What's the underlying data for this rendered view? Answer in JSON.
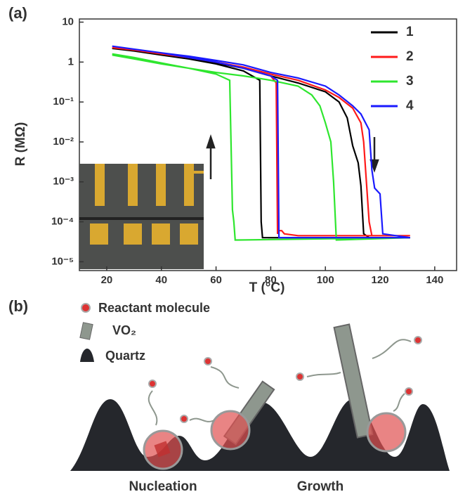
{
  "panel_labels": [
    "(a)",
    "(b)"
  ],
  "chart_data": {
    "type": "line",
    "log_y": true,
    "grid": false,
    "legend": "upper right",
    "x_label": "T (°C)",
    "y_label": "R (MΩ)",
    "xlim": [
      10,
      148
    ],
    "xticks": [
      20,
      40,
      60,
      80,
      100,
      120,
      140
    ],
    "ylim": [
      6e-06,
      12
    ],
    "yticks": [
      10,
      1,
      {
        "value": 0.1,
        "label": "10⁻¹"
      },
      {
        "value": 0.01,
        "label": "10⁻²"
      },
      {
        "value": 0.001,
        "label": "10⁻³"
      },
      {
        "value": 0.0001,
        "label": "10⁻⁴"
      },
      {
        "value": 1e-05,
        "label": "10⁻⁵"
      }
    ],
    "series": [
      {
        "name": "1",
        "color": "#000000",
        "x": [
          22,
          30,
          40,
          50,
          60,
          70,
          80,
          90,
          100,
          105,
          108,
          110,
          112,
          113,
          114,
          116,
          131,
          77,
          76.5,
          76,
          70,
          60,
          50,
          40,
          30,
          22
        ],
        "values": [
          2.2,
          1.9,
          1.5,
          1.2,
          0.95,
          0.7,
          0.45,
          0.3,
          0.18,
          0.1,
          0.04,
          0.008,
          0.003,
          0.0008,
          5e-05,
          4e-05,
          4e-05,
          4e-05,
          0.0001,
          0.35,
          0.6,
          0.9,
          1.2,
          1.5,
          1.9,
          2.2
        ]
      },
      {
        "name": "2",
        "color": "#ff1a1a",
        "x": [
          22,
          30,
          40,
          50,
          60,
          70,
          80,
          90,
          100,
          105,
          110,
          113,
          114,
          115,
          116,
          117,
          131,
          90,
          85,
          84,
          83,
          82.5,
          82,
          80,
          70,
          60,
          50,
          40,
          30,
          22
        ],
        "values": [
          2.3,
          2.0,
          1.6,
          1.3,
          1.0,
          0.75,
          0.5,
          0.35,
          0.2,
          0.13,
          0.07,
          0.03,
          0.01,
          0.001,
          0.0001,
          4.5e-05,
          4.5e-05,
          4.5e-05,
          5e-05,
          6e-05,
          6e-05,
          5e-05,
          0.3,
          0.45,
          0.7,
          1.0,
          1.3,
          1.6,
          2.0,
          2.3
        ]
      },
      {
        "name": "3",
        "color": "#2ee62e",
        "x": [
          22,
          30,
          40,
          50,
          60,
          70,
          80,
          90,
          95,
          98,
          100,
          102,
          103,
          104,
          131,
          68,
          67,
          66.5,
          66,
          65,
          60,
          50,
          40,
          30,
          22
        ],
        "values": [
          1.5,
          1.2,
          0.9,
          0.7,
          0.55,
          0.45,
          0.35,
          0.25,
          0.15,
          0.08,
          0.03,
          0.01,
          0.001,
          3.5e-05,
          4e-05,
          3.5e-05,
          3.5e-05,
          0.0001,
          0.0002,
          0.35,
          0.5,
          0.7,
          0.95,
          1.3,
          1.6
        ]
      },
      {
        "name": "4",
        "color": "#1a1aff",
        "x": [
          22,
          30,
          40,
          50,
          60,
          70,
          80,
          90,
          100,
          105,
          110,
          113,
          116,
          117,
          118,
          120,
          121,
          131,
          84,
          83,
          82.5,
          80,
          70,
          60,
          50,
          40,
          30,
          22
        ],
        "values": [
          2.5,
          2.1,
          1.7,
          1.4,
          1.1,
          0.85,
          0.55,
          0.4,
          0.25,
          0.15,
          0.08,
          0.05,
          0.02,
          0.002,
          0.0007,
          0.0005,
          5e-05,
          4e-05,
          4e-05,
          4e-05,
          0.35,
          0.45,
          0.7,
          1.0,
          1.3,
          1.7,
          2.1,
          2.5
        ]
      }
    ]
  },
  "diagram": {
    "legend": [
      "Reactant molecule",
      "VO₂",
      "Quartz"
    ],
    "stages": [
      "Nucleation",
      "Growth"
    ]
  }
}
